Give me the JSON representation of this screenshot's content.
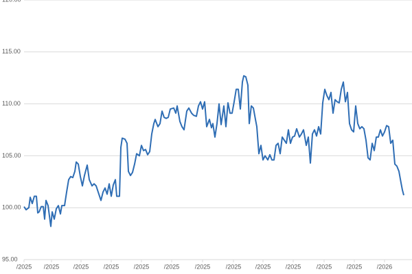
{
  "chart_data": {
    "type": "line",
    "x": [
      35,
      38,
      42,
      44,
      47,
      50,
      53,
      55,
      57,
      60,
      63,
      65,
      67,
      70,
      72,
      74,
      76,
      79,
      82,
      85,
      88,
      90,
      94,
      97,
      100,
      103,
      106,
      109,
      111,
      114,
      117,
      120,
      123,
      127,
      130,
      134,
      137,
      140,
      143,
      147,
      150,
      153,
      156,
      159,
      162,
      165,
      168,
      170,
      174,
      176,
      178,
      182,
      185,
      187,
      190,
      193,
      196,
      199,
      203,
      206,
      209,
      212,
      215,
      218,
      221,
      224,
      226,
      230,
      233,
      236,
      239,
      242,
      245,
      248,
      253,
      256,
      258,
      262,
      265,
      268,
      272,
      275,
      279,
      282,
      286,
      289,
      292,
      295,
      298,
      301,
      305,
      308,
      310,
      313,
      316,
      319,
      322,
      326,
      329,
      332,
      335,
      338,
      341,
      344,
      347,
      350,
      353,
      355,
      358,
      361,
      363,
      366,
      369,
      372,
      374,
      377,
      380,
      383,
      386,
      390,
      393,
      396,
      399,
      402,
      405,
      408,
      411,
      414,
      417,
      420,
      423,
      426,
      429,
      432,
      436,
      439,
      442,
      446,
      449,
      452,
      455,
      458,
      461,
      464,
      467,
      470,
      473,
      476,
      479,
      482,
      485,
      488,
      491,
      494,
      497,
      500,
      503,
      506,
      509,
      512,
      515,
      518,
      521,
      524,
      527,
      530,
      533,
      536,
      539,
      542,
      545,
      548,
      551,
      554,
      557,
      560,
      563,
      566,
      569,
      572,
      575,
      578,
      581,
      584,
      586,
      588
    ],
    "series": [
      {
        "color": "#2e6db4",
        "values": [
          100.1,
          99.8,
          100.0,
          101.0,
          100.4,
          101.1,
          101.1,
          99.5,
          99.6,
          100.1,
          100.1,
          98.9,
          100.7,
          100.2,
          99.2,
          98.2,
          99.6,
          98.9,
          99.9,
          100.2,
          99.4,
          100.2,
          100.2,
          101.5,
          102.7,
          103.0,
          102.9,
          103.5,
          104.4,
          104.2,
          103.0,
          102.1,
          103.1,
          104.1,
          102.7,
          102.1,
          102.3,
          102.1,
          101.5,
          100.7,
          101.5,
          101.9,
          101.3,
          102.3,
          101.1,
          102.2,
          102.7,
          101.1,
          101.1,
          105.8,
          106.7,
          106.6,
          106.2,
          103.5,
          103.1,
          103.4,
          104.2,
          105.2,
          105.0,
          106.0,
          105.5,
          105.6,
          105.1,
          105.4,
          107.1,
          108.1,
          108.5,
          107.8,
          108.1,
          109.3,
          108.7,
          108.6,
          108.7,
          109.5,
          109.6,
          109.1,
          109.8,
          108.3,
          107.8,
          107.5,
          109.3,
          109.6,
          109.1,
          108.9,
          108.8,
          109.8,
          110.2,
          109.5,
          110.2,
          107.8,
          108.5,
          107.7,
          108.1,
          106.8,
          108.1,
          110.0,
          108.0,
          109.8,
          107.8,
          110.1,
          109.1,
          109.1,
          110.2,
          111.4,
          111.4,
          109.5,
          112.1,
          112.7,
          112.6,
          111.8,
          108.1,
          109.8,
          109.6,
          108.5,
          107.8,
          105.2,
          106.0,
          104.6,
          105.0,
          104.6,
          105.1,
          104.6,
          104.6,
          106.0,
          106.2,
          105.2,
          106.8,
          106.5,
          106.2,
          107.5,
          106.2,
          106.8,
          106.9,
          107.6,
          106.8,
          107.1,
          107.5,
          106.0,
          106.8,
          104.3,
          107.1,
          107.5,
          106.9,
          107.8,
          107.1,
          110.1,
          111.4,
          110.8,
          110.4,
          111.1,
          109.1,
          110.4,
          110.2,
          110.1,
          111.4,
          112.1,
          110.2,
          111.1,
          108.1,
          107.5,
          107.3,
          109.8,
          108.1,
          107.6,
          107.8,
          107.6,
          106.5,
          104.8,
          104.6,
          106.2,
          105.5,
          106.8,
          106.8,
          107.5,
          106.9,
          107.3,
          107.9,
          107.8,
          106.2,
          106.5,
          104.2,
          104.0,
          103.5,
          102.4,
          101.7,
          101.2
        ]
      }
    ],
    "xlim": [
      35,
      588
    ],
    "xticks": [
      {
        "value": 35,
        "label": "/2025"
      },
      {
        "value": 75,
        "label": "/2025"
      },
      {
        "value": 118,
        "label": "/2025"
      },
      {
        "value": 162,
        "label": "/2025"
      },
      {
        "value": 206,
        "label": "/2025"
      },
      {
        "value": 250,
        "label": "/2025"
      },
      {
        "value": 295,
        "label": "/2025"
      },
      {
        "value": 340,
        "label": "/2025"
      },
      {
        "value": 383,
        "label": "/2025"
      },
      {
        "value": 427,
        "label": "/2025"
      },
      {
        "value": 472,
        "label": "/2025"
      },
      {
        "value": 516,
        "label": "/2025"
      },
      {
        "value": 560,
        "label": "/2026"
      }
    ],
    "ylim": [
      95,
      120
    ],
    "yticks": [
      {
        "value": 95,
        "label": "95.00"
      },
      {
        "value": 100,
        "label": "100.00"
      },
      {
        "value": 105,
        "label": "105.00"
      },
      {
        "value": 110,
        "label": "110.00"
      },
      {
        "value": 115,
        "label": "115.00"
      },
      {
        "value": 120,
        "label": "120.00"
      }
    ],
    "grid": true
  }
}
